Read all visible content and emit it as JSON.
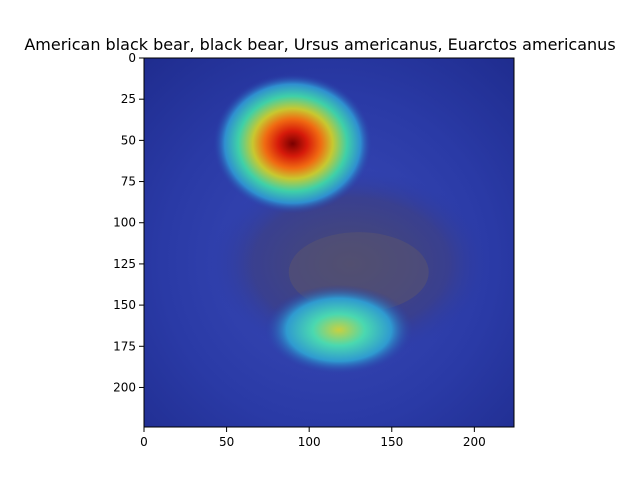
{
  "chart_data": {
    "type": "heatmap",
    "title": "American black bear, black bear, Ursus americanus, Euarctos americanus",
    "xlabel": "",
    "ylabel": "",
    "xlim": [
      0,
      224
    ],
    "ylim": [
      224,
      0
    ],
    "x_ticks": [
      0,
      50,
      100,
      150,
      200
    ],
    "y_ticks": [
      0,
      25,
      50,
      75,
      100,
      125,
      150,
      175,
      200
    ],
    "colormap": "jet",
    "grid": false,
    "activation_peaks": [
      {
        "x": 90,
        "y": 52,
        "intensity": 1.0
      },
      {
        "x": 118,
        "y": 165,
        "intensity": 0.5
      }
    ]
  },
  "colors": {
    "background": "#ffffff",
    "axis": "#000000",
    "overlay_low": "#1a2a9c",
    "overlay_mid": "#2fd6c0",
    "overlay_high": "#c81a0a"
  }
}
